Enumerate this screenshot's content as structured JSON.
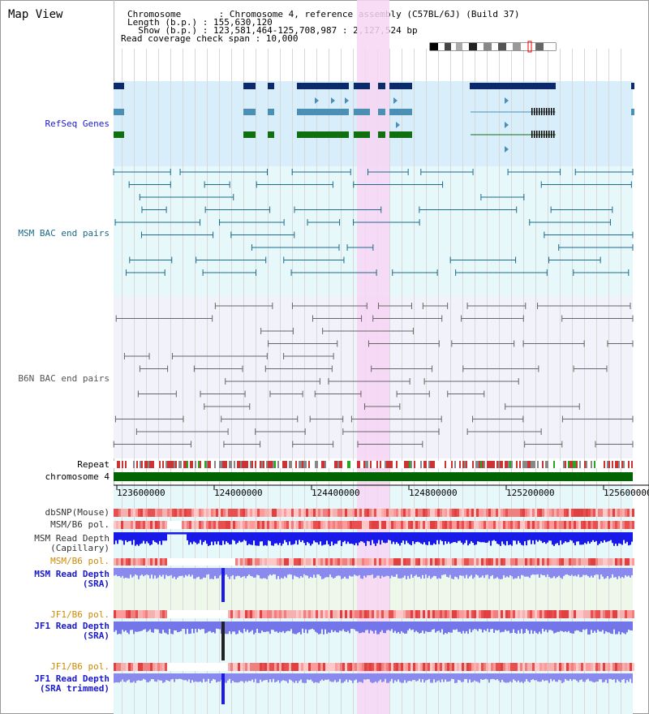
{
  "header": {
    "title": "Map View",
    "info": {
      "chromosome": "Chromosome       : Chromosome 4, reference assembly (C57BL/6J) (Build 37)",
      "length": "Length (b.p.) : 155,630,120",
      "show": "  Show (b.p.) : 123,581,464-125,708,987 : 2,127,524 bp",
      "span": "Read coverage check span : 10,000"
    }
  },
  "tracks": {
    "refseq": "RefSeq Genes",
    "msm_bac": "MSM BAC end pairs",
    "b6n_bac": "B6N BAC end pairs",
    "repeat": "Repeat",
    "chromosome": "chromosome 4",
    "dbsnp": "dbSNP(Mouse)",
    "msm_b6_pol": "MSM/B6 pol.",
    "msm_read_depth_cap": "MSM Read Depth\n(Capillary)",
    "msm_b6_pol2": "MSM/B6 pol.",
    "msm_read_depth_sra": "MSM Read Depth\n(SRA)",
    "jf1_b6_pol": "JF1/B6 pol.",
    "jf1_read_depth_sra": "JF1 Read Depth\n(SRA)",
    "jf1_b6_pol2": "JF1/B6 pol.",
    "jf1_read_depth_trim": "JF1 Read Depth\n(SRA trimmed)"
  },
  "axis": {
    "ticks": [
      "123600000",
      "124000000",
      "124400000",
      "124800000",
      "125200000",
      "125600000"
    ]
  },
  "colors": {
    "refseq_bg": "#d8eefa",
    "msm_bg": "#e6f8fa",
    "b6n_bg": "#f2f2fa",
    "highlight": "#f7d6f3",
    "chrom_green": "#006400",
    "dark_blue": "#0a2a6a",
    "mid_blue": "#4c8fb5",
    "green": "#107010"
  }
}
